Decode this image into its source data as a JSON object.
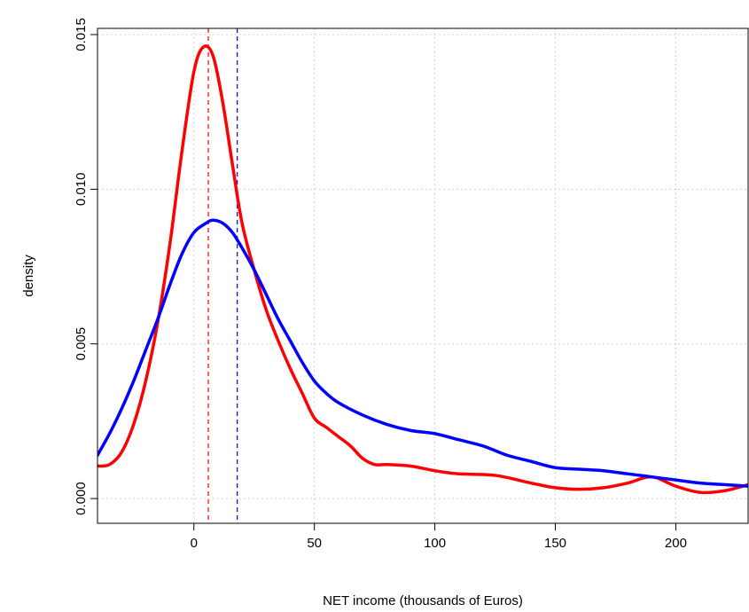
{
  "chart_data": {
    "type": "line",
    "title": "",
    "xlabel": "NET income (thousands of Euros)",
    "ylabel": "density",
    "xlim": [
      -40,
      230
    ],
    "ylim": [
      -0.0008,
      0.0152
    ],
    "x_ticks": [
      0,
      50,
      100,
      150,
      200
    ],
    "x_tick_labels": [
      "0",
      "50",
      "100",
      "150",
      "200"
    ],
    "y_ticks": [
      0.0,
      0.005,
      0.01,
      0.015
    ],
    "y_tick_labels": [
      "0.000",
      "0.005",
      "0.010",
      "0.015"
    ],
    "grid": true,
    "legend": "none",
    "series": [
      {
        "color": "#ff0000",
        "x": [
          -40,
          -35,
          -30,
          -25,
          -20,
          -15,
          -10,
          -5,
          0,
          4,
          8,
          12,
          16,
          20,
          25,
          30,
          35,
          40,
          45,
          50,
          55,
          60,
          65,
          70,
          75,
          80,
          90,
          100,
          110,
          125,
          140,
          150,
          160,
          170,
          180,
          190,
          200,
          210,
          220,
          230
        ],
        "values": [
          0.00105,
          0.0011,
          0.0015,
          0.0024,
          0.0038,
          0.0057,
          0.0082,
          0.0112,
          0.0138,
          0.0146,
          0.0143,
          0.0128,
          0.0108,
          0.0089,
          0.0074,
          0.0061,
          0.0051,
          0.0042,
          0.0034,
          0.0026,
          0.0023,
          0.002,
          0.0017,
          0.0013,
          0.0011,
          0.0011,
          0.00105,
          0.0009,
          0.0008,
          0.00075,
          0.0005,
          0.00035,
          0.0003,
          0.00035,
          0.0005,
          0.0007,
          0.0004,
          0.0002,
          0.00025,
          0.00045
        ]
      },
      {
        "color": "#0000ff",
        "x": [
          -40,
          -35,
          -30,
          -25,
          -20,
          -15,
          -10,
          -5,
          0,
          5,
          8,
          12,
          16,
          20,
          25,
          30,
          35,
          40,
          45,
          50,
          55,
          60,
          70,
          80,
          90,
          100,
          110,
          120,
          130,
          140,
          150,
          160,
          170,
          180,
          190,
          200,
          210,
          220,
          230
        ],
        "values": [
          0.0014,
          0.0021,
          0.0029,
          0.0038,
          0.0048,
          0.0058,
          0.0069,
          0.0079,
          0.0086,
          0.0089,
          0.009,
          0.0089,
          0.0086,
          0.0081,
          0.0074,
          0.0066,
          0.0058,
          0.0051,
          0.0044,
          0.0038,
          0.0034,
          0.0031,
          0.0027,
          0.0024,
          0.0022,
          0.0021,
          0.0019,
          0.0017,
          0.0014,
          0.0012,
          0.001,
          0.00095,
          0.0009,
          0.0008,
          0.0007,
          0.0006,
          0.0005,
          0.00045,
          0.0004
        ]
      }
    ],
    "reference_lines": [
      {
        "axis": "x",
        "value": 6,
        "color": "#ff0000",
        "style": "dashed"
      },
      {
        "axis": "x",
        "value": 18,
        "color": "#0000ff",
        "style": "dashed"
      }
    ]
  }
}
